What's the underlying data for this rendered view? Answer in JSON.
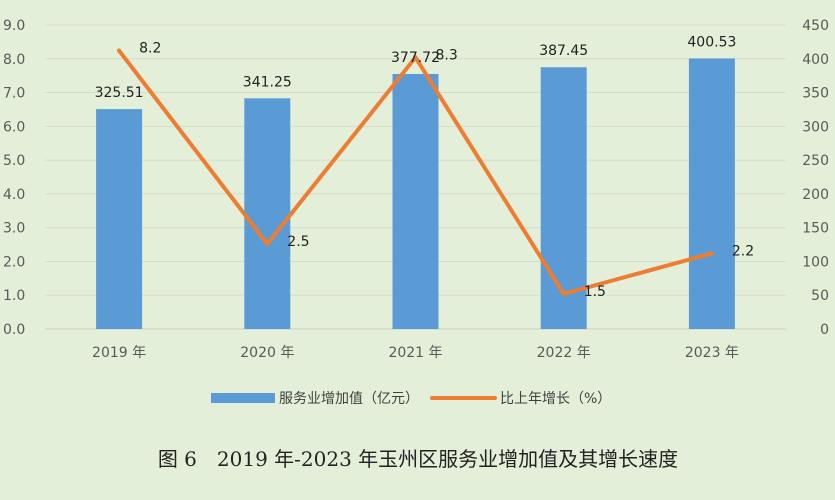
{
  "chart_data": {
    "type": "bar",
    "categories": [
      "2019 年",
      "2020 年",
      "2021 年",
      "2022 年",
      "2023 年"
    ],
    "series": [
      {
        "name": "服务业增加值（亿元）",
        "kind": "bar",
        "axis": "left",
        "values": [
          6.51,
          6.83,
          7.55,
          7.75,
          8.01
        ],
        "labels": [
          "325.51",
          "341.25",
          "377.72",
          "387.45",
          "400.53"
        ]
      },
      {
        "name": "比上年增长（%）",
        "kind": "line",
        "axis": "right",
        "values": [
          412,
          126,
          402,
          52,
          112
        ],
        "labels": [
          "8.2",
          "2.5",
          "8.3",
          "1.5",
          "2.2"
        ]
      }
    ],
    "y_left": {
      "ylim": [
        0,
        9
      ],
      "ticks": [
        "0.0",
        "1.0",
        "2.0",
        "3.0",
        "4.0",
        "5.0",
        "6.0",
        "7.0",
        "8.0",
        "9.0"
      ]
    },
    "y_right": {
      "ylim": [
        0,
        450
      ],
      "ticks": [
        "0",
        "50",
        "100",
        "150",
        "200",
        "250",
        "300",
        "350",
        "400",
        "450"
      ]
    },
    "grid": true,
    "legend": "bottom",
    "caption": "图 6　2019 年-2023 年玉州区服务业增加值及其增长速度",
    "colors": {
      "background": "#e4efd9",
      "bar": "#5b9bd5",
      "line": "#ed7d31",
      "grid": "#d3dccb"
    }
  }
}
